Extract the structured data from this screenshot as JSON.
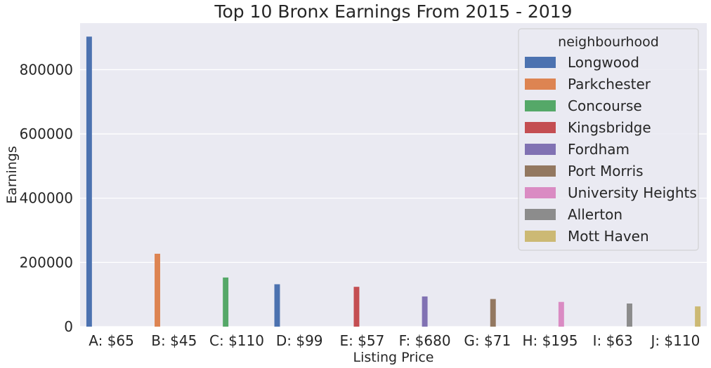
{
  "chart_data": {
    "type": "bar",
    "title": "Top 10 Bronx Earnings From 2015 - 2019",
    "xlabel": "Listing Price",
    "ylabel": "Earnings",
    "ylim": [
      0,
      945000
    ],
    "yticks": [
      "0",
      "200000",
      "400000",
      "600000",
      "800000"
    ],
    "grid": true,
    "categories": [
      "A: $65",
      "B: $45",
      "C: $110",
      "D: $99",
      "E: $57",
      "F: $680",
      "G: $71",
      "H: $195",
      "I: $63",
      "J: $110"
    ],
    "legend": {
      "title": "neighbourhood",
      "placement": "top-right"
    },
    "series": [
      {
        "name": "Longwood",
        "color": "#4c72b0",
        "values": [
          903000,
          null,
          null,
          132000,
          null,
          null,
          null,
          null,
          null,
          null
        ]
      },
      {
        "name": "Parkchester",
        "color": "#dd8452",
        "values": [
          null,
          227000,
          null,
          null,
          null,
          null,
          null,
          null,
          null,
          null
        ]
      },
      {
        "name": "Concourse",
        "color": "#55a868",
        "values": [
          null,
          null,
          153000,
          null,
          null,
          null,
          null,
          null,
          null,
          null
        ]
      },
      {
        "name": "Kingsbridge",
        "color": "#c44e52",
        "values": [
          null,
          null,
          null,
          null,
          124000,
          null,
          null,
          null,
          null,
          null
        ]
      },
      {
        "name": "Fordham",
        "color": "#8172b3",
        "values": [
          null,
          null,
          null,
          null,
          null,
          94000,
          null,
          null,
          null,
          null
        ]
      },
      {
        "name": "Port Morris",
        "color": "#937860",
        "values": [
          null,
          null,
          null,
          null,
          null,
          null,
          86000,
          null,
          null,
          null
        ]
      },
      {
        "name": "University Heights",
        "color": "#da8bc3",
        "values": [
          null,
          null,
          null,
          null,
          null,
          null,
          null,
          77000,
          null,
          null
        ]
      },
      {
        "name": "Allerton",
        "color": "#8c8c8c",
        "values": [
          null,
          null,
          null,
          null,
          null,
          null,
          null,
          null,
          72000,
          null
        ]
      },
      {
        "name": "Mott Haven",
        "color": "#ccb974",
        "values": [
          null,
          null,
          null,
          null,
          null,
          null,
          null,
          null,
          null,
          63000
        ]
      }
    ]
  }
}
